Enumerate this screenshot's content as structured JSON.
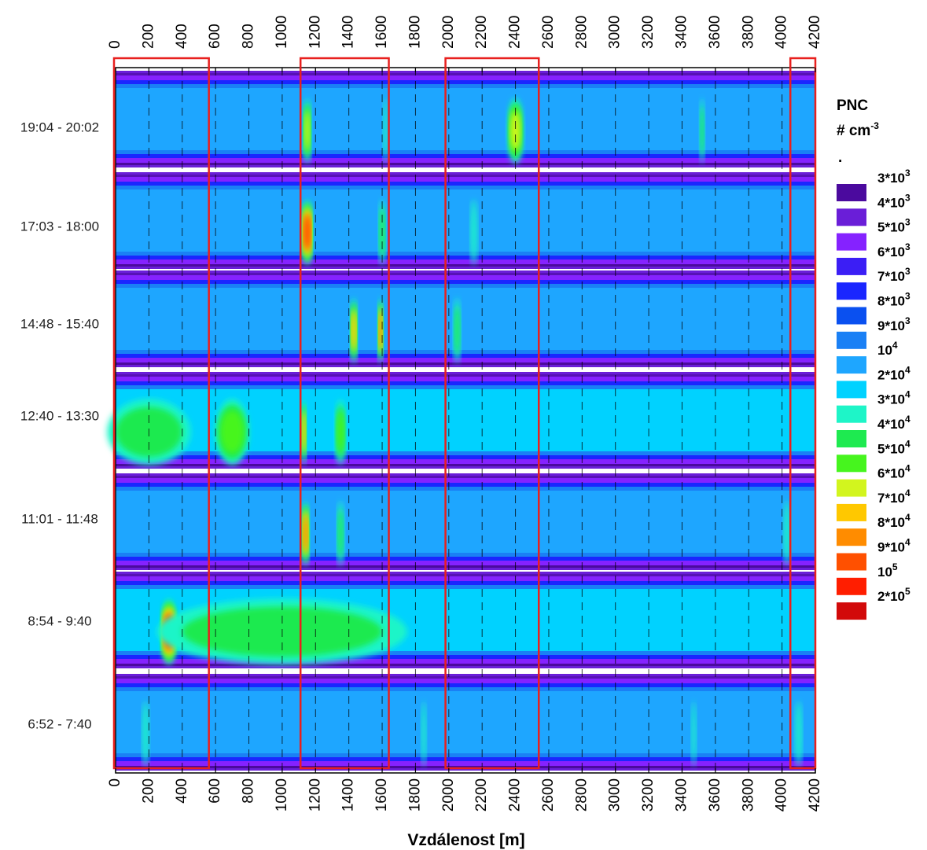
{
  "chart_data": {
    "type": "heatmap",
    "xlabel": "Vzdálenost [m]",
    "xlim": [
      0,
      4200
    ],
    "x_ticks": [
      "0",
      "200",
      "400",
      "600",
      "800",
      "1000",
      "1200",
      "1400",
      "1600",
      "1800",
      "2000",
      "2200",
      "2400",
      "2600",
      "2800",
      "3000",
      "3200",
      "3400",
      "3600",
      "3800",
      "4000",
      "4200"
    ],
    "vertical_grid_dashed": true,
    "rows": [
      {
        "label": "19:04 - 20:02",
        "base_level": 7,
        "hotspots": [
          {
            "x": 1150,
            "w": 45,
            "level": 12
          },
          {
            "x": 1620,
            "w": 25,
            "level": 9
          },
          {
            "x": 2400,
            "w": 90,
            "level": 12
          },
          {
            "x": 3520,
            "w": 25,
            "level": 10
          }
        ]
      },
      {
        "label": "17:03 - 18:00",
        "base_level": 7,
        "hotspots": [
          {
            "x": 1150,
            "w": 60,
            "level": 15
          },
          {
            "x": 1600,
            "w": 40,
            "level": 10
          },
          {
            "x": 2150,
            "w": 40,
            "level": 9
          }
        ]
      },
      {
        "label": "14:48 - 15:40",
        "base_level": 7,
        "hotspots": [
          {
            "x": 1430,
            "w": 40,
            "level": 13
          },
          {
            "x": 1590,
            "w": 30,
            "level": 14
          },
          {
            "x": 2050,
            "w": 40,
            "level": 10
          }
        ]
      },
      {
        "label": "12:40 - 13:30",
        "base_level": 8,
        "hotspots": [
          {
            "x": 200,
            "w": 500,
            "level": 10
          },
          {
            "x": 700,
            "w": 200,
            "level": 11
          },
          {
            "x": 1130,
            "w": 30,
            "level": 13
          },
          {
            "x": 1350,
            "w": 60,
            "level": 11
          }
        ]
      },
      {
        "label": "11:01 - 11:48",
        "base_level": 7,
        "hotspots": [
          {
            "x": 1140,
            "w": 40,
            "level": 14
          },
          {
            "x": 1350,
            "w": 40,
            "level": 10
          },
          {
            "x": 4030,
            "w": 40,
            "level": 9
          }
        ]
      },
      {
        "label": "8:54 - 9:40",
        "base_level": 8,
        "hotspots": [
          {
            "x": 320,
            "w": 90,
            "level": 15
          },
          {
            "x": 1000,
            "w": 1500,
            "level": 10
          }
        ]
      },
      {
        "label": "6:52 - 7:40",
        "base_level": 7,
        "hotspots": [
          {
            "x": 180,
            "w": 40,
            "level": 9
          },
          {
            "x": 1850,
            "w": 30,
            "level": 9
          },
          {
            "x": 3470,
            "w": 25,
            "level": 9
          },
          {
            "x": 4100,
            "w": 40,
            "level": 9
          }
        ]
      }
    ],
    "highlight_ranges": [
      [
        0,
        560
      ],
      [
        1110,
        1640
      ],
      [
        1980,
        2540
      ],
      [
        4050,
        4200
      ]
    ],
    "highlight_color": "#e8201e",
    "legend": {
      "title": "PNC",
      "unit": "# cm",
      "unit_sup": "-3",
      "dot": ".",
      "entries": [
        {
          "base": "3*10",
          "exp": "3",
          "color": "#4b0a9e"
        },
        {
          "base": "4*10",
          "exp": "3",
          "color": "#6a1ed8"
        },
        {
          "base": "5*10",
          "exp": "3",
          "color": "#8522ff"
        },
        {
          "base": "6*10",
          "exp": "3",
          "color": "#3b1ef5"
        },
        {
          "base": "7*10",
          "exp": "3",
          "color": "#1a26ff"
        },
        {
          "base": "8*10",
          "exp": "3",
          "color": "#0a50f0"
        },
        {
          "base": "9*10",
          "exp": "3",
          "color": "#1a80f5"
        },
        {
          "base": "10",
          "exp": "4",
          "color": "#1ea6ff"
        },
        {
          "base": "2*10",
          "exp": "4",
          "color": "#00d2ff"
        },
        {
          "base": "3*10",
          "exp": "4",
          "color": "#1ef5c8"
        },
        {
          "base": "4*10",
          "exp": "4",
          "color": "#1eea50"
        },
        {
          "base": "5*10",
          "exp": "4",
          "color": "#46f51e"
        },
        {
          "base": "6*10",
          "exp": "4",
          "color": "#d2f51e"
        },
        {
          "base": "7*10",
          "exp": "4",
          "color": "#ffc800"
        },
        {
          "base": "8*10",
          "exp": "4",
          "color": "#ff8c00"
        },
        {
          "base": "9*10",
          "exp": "4",
          "color": "#ff5000"
        },
        {
          "base": "10",
          "exp": "5",
          "color": "#ff1e00"
        },
        {
          "base": "2*10",
          "exp": "5",
          "color": "#d20a0a"
        }
      ]
    }
  }
}
